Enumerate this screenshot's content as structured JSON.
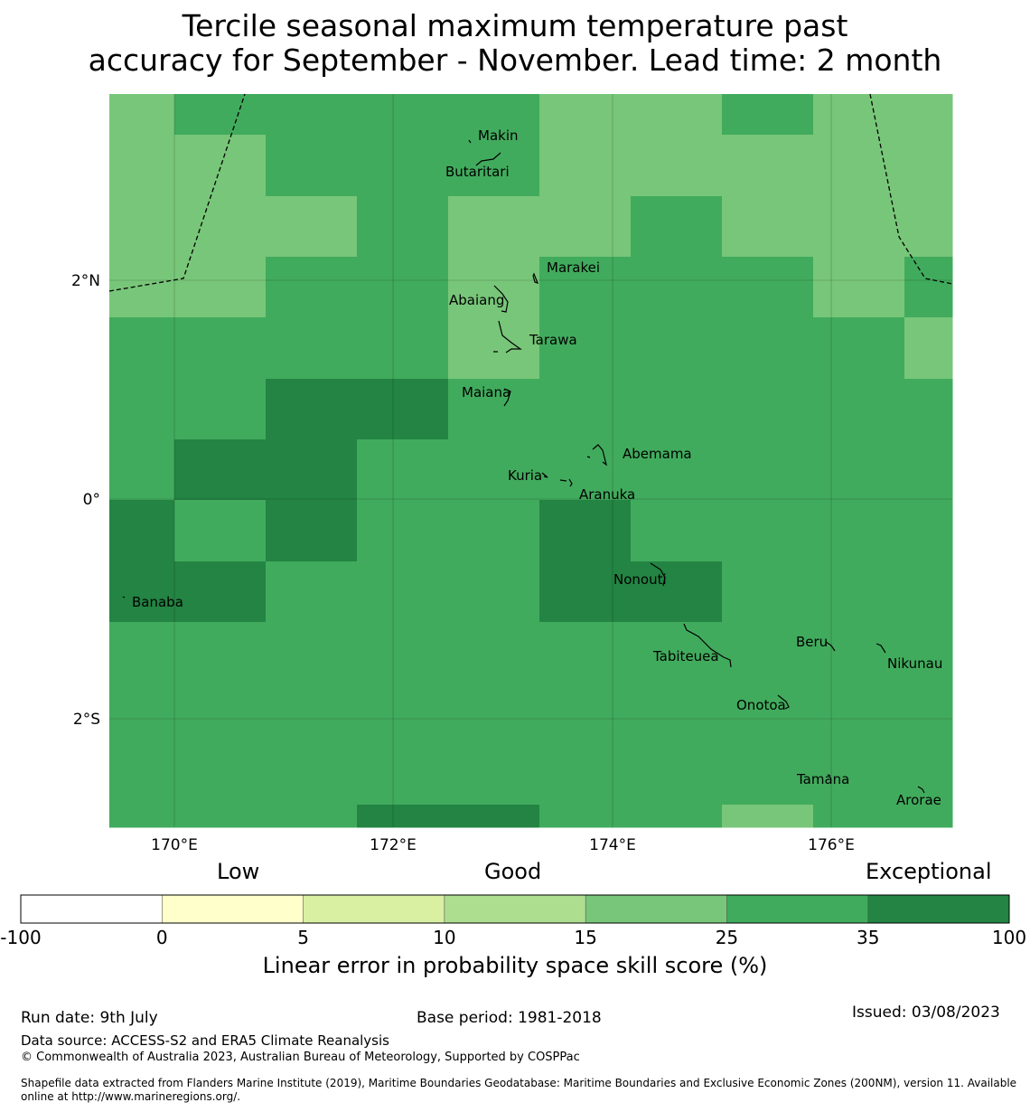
{
  "title": {
    "line1": "Tercile seasonal maximum temperature past",
    "line2": "accuracy for September - November. Lead time: 2 month"
  },
  "map": {
    "lon_ticks": [
      "170°E",
      "172°E",
      "174°E",
      "176°E"
    ],
    "lat_ticks": [
      "2°N",
      "0°",
      "2°S"
    ],
    "places": [
      {
        "name": "Makin"
      },
      {
        "name": "Butaritari"
      },
      {
        "name": "Marakei"
      },
      {
        "name": "Abaiang"
      },
      {
        "name": "Tarawa"
      },
      {
        "name": "Maiana"
      },
      {
        "name": "Abemama"
      },
      {
        "name": "Kuria"
      },
      {
        "name": "Aranuka"
      },
      {
        "name": "Nonouti"
      },
      {
        "name": "Banaba"
      },
      {
        "name": "Beru"
      },
      {
        "name": "Tabiteuea"
      },
      {
        "name": "Nikunau"
      },
      {
        "name": "Onotoa"
      },
      {
        "name": "Tamana"
      },
      {
        "name": "Arorae"
      }
    ],
    "grid": {
      "rows": [
        [
          4,
          5,
          5,
          5,
          5,
          4,
          4,
          5,
          4,
          4
        ],
        [
          4,
          4,
          5,
          5,
          5,
          4,
          4,
          4,
          4,
          4
        ],
        [
          4,
          4,
          4,
          5,
          4,
          4,
          5,
          4,
          4,
          4
        ],
        [
          4,
          4,
          5,
          5,
          4,
          5,
          5,
          5,
          4,
          5
        ],
        [
          5,
          5,
          5,
          5,
          4,
          5,
          5,
          5,
          5,
          4
        ],
        [
          5,
          5,
          6,
          6,
          5,
          5,
          5,
          5,
          5,
          5
        ],
        [
          5,
          6,
          6,
          5,
          5,
          5,
          5,
          5,
          5,
          5
        ],
        [
          6,
          5,
          6,
          5,
          5,
          6,
          5,
          5,
          5,
          5
        ],
        [
          6,
          6,
          5,
          5,
          5,
          6,
          6,
          5,
          5,
          5
        ],
        [
          5,
          5,
          5,
          5,
          5,
          5,
          5,
          5,
          5,
          5
        ],
        [
          5,
          5,
          5,
          5,
          5,
          5,
          5,
          5,
          5,
          5
        ],
        [
          5,
          5,
          5,
          6,
          6,
          5,
          5,
          4,
          5,
          5
        ]
      ]
    }
  },
  "colorbar": {
    "words": {
      "low": "Low",
      "good": "Good",
      "exceptional": "Exceptional"
    },
    "bins": [
      {
        "color": "#ffffff"
      },
      {
        "color": "#ffffcc"
      },
      {
        "color": "#d9f0a3"
      },
      {
        "color": "#addd8e"
      },
      {
        "color": "#78c679"
      },
      {
        "color": "#41ab5d"
      },
      {
        "color": "#238443"
      }
    ],
    "ticks": [
      "-100",
      "0",
      "5",
      "10",
      "15",
      "25",
      "35",
      "100"
    ],
    "label": "Linear error in probability space skill score (%)"
  },
  "footer": {
    "run_date": "Run date: 9th July",
    "base_period": "Base period: 1981-2018",
    "issued": "Issued: 03/08/2023",
    "data_source": "Data source: ACCESS-S2 and ERA5 Climate Reanalysis",
    "copyright": "© Commonwealth of Australia 2023, Australian Bureau of Meteorology, Supported by COSPPac",
    "shapefile_line1": "Shapefile data extracted from Flanders Marine Institute (2019), Maritime Boundaries Geodatabase: Maritime Boundaries and Exclusive Economic Zones (200NM), version 11. Available",
    "shapefile_line2": "online at http://www.marineregions.org/."
  }
}
